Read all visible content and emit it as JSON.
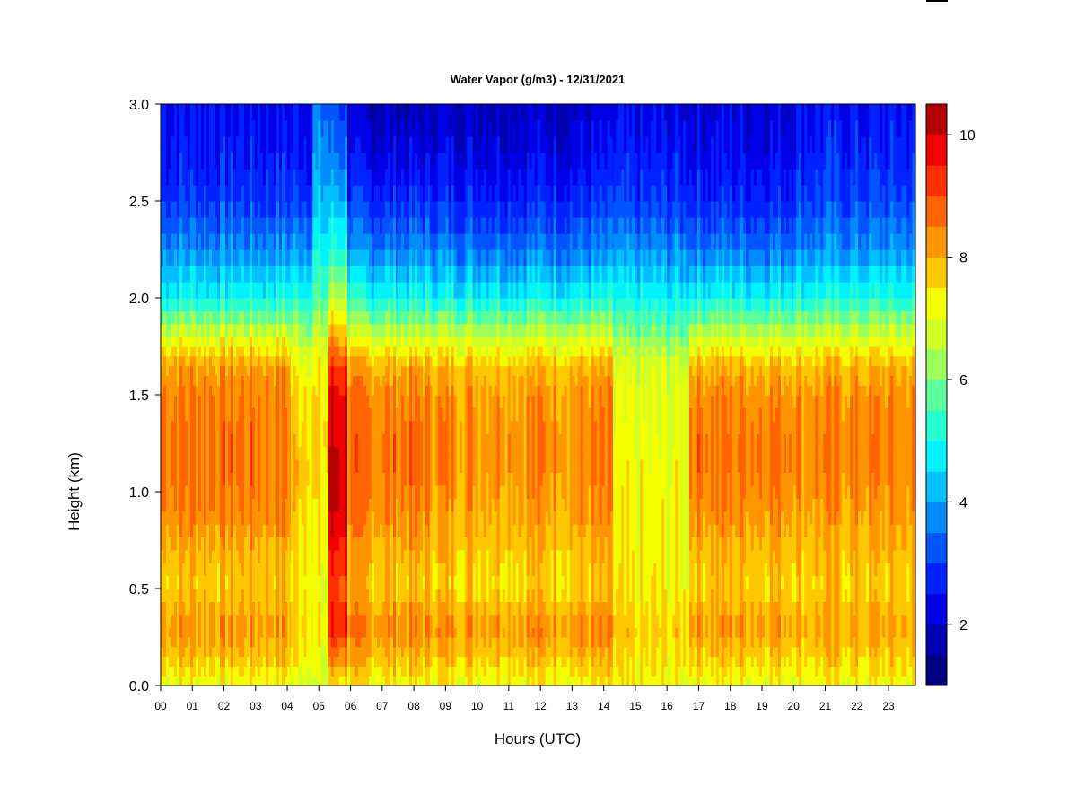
{
  "chart_data": {
    "type": "heatmap",
    "title": "Water Vapor (g/m3) - 12/31/2021",
    "xlabel": "Hours (UTC)",
    "ylabel": "Height (km)",
    "x_ticks": [
      "00",
      "01",
      "02",
      "03",
      "04",
      "05",
      "06",
      "07",
      "08",
      "09",
      "10",
      "11",
      "12",
      "13",
      "14",
      "15",
      "16",
      "17",
      "18",
      "19",
      "20",
      "21",
      "22",
      "23"
    ],
    "y_ticks": [
      "0.0",
      "0.5",
      "1.0",
      "1.5",
      "2.0",
      "2.5",
      "3.0"
    ],
    "xlim": [
      0,
      23.85
    ],
    "ylim": [
      0,
      3.0
    ],
    "colorbar": {
      "range": [
        1.0,
        10.5
      ],
      "ticks": [
        "2",
        "4",
        "6",
        "8",
        "10"
      ],
      "levels": [
        1.0,
        1.5,
        2.0,
        2.5,
        3.0,
        3.5,
        4.0,
        4.5,
        5.0,
        5.5,
        6.0,
        6.5,
        7.0,
        7.5,
        8.0,
        8.5,
        9.0,
        9.5,
        10.0,
        10.5
      ],
      "colors": [
        "#00007f",
        "#0000b3",
        "#0000e6",
        "#0022ff",
        "#0055ff",
        "#008cff",
        "#00c0ff",
        "#00f3ff",
        "#27ffd0",
        "#5bff9c",
        "#9cff5b",
        "#d0ff27",
        "#f3ff00",
        "#ffc800",
        "#ff9600",
        "#ff6400",
        "#ff3000",
        "#f30000",
        "#b30000",
        "#7f0000"
      ]
    },
    "heights_km": [
      0.0,
      0.15,
      0.3,
      0.5,
      0.7,
      0.9,
      1.1,
      1.3,
      1.5,
      1.65,
      1.8,
      2.0,
      2.25,
      2.5,
      2.75,
      3.0
    ],
    "profiles_g_m3": [
      {
        "hours": [
          0.0,
          4.1
        ],
        "values": [
          7.2,
          7.9,
          8.3,
          7.8,
          8.0,
          8.5,
          8.6,
          8.6,
          8.5,
          8.2,
          7.0,
          5.0,
          3.8,
          3.0,
          2.6,
          2.5
        ]
      },
      {
        "hours": [
          4.1,
          4.8
        ],
        "values": [
          7.0,
          7.5,
          7.8,
          7.5,
          7.6,
          7.8,
          7.9,
          7.8,
          7.6,
          7.3,
          6.6,
          5.2,
          4.0,
          3.1,
          2.6,
          2.4
        ]
      },
      {
        "hours": [
          4.8,
          5.3
        ],
        "values": [
          6.8,
          7.0,
          7.2,
          7.0,
          7.2,
          7.3,
          7.5,
          7.6,
          7.4,
          7.2,
          6.6,
          5.6,
          4.8,
          4.2,
          3.8,
          3.4
        ]
      },
      {
        "hours": [
          5.3,
          5.9
        ],
        "values": [
          7.5,
          8.5,
          9.6,
          9.0,
          9.6,
          10.1,
          10.2,
          10.0,
          9.8,
          9.2,
          8.0,
          6.5,
          5.2,
          4.3,
          3.5,
          3.0
        ]
      },
      {
        "hours": [
          5.9,
          8.5
        ],
        "values": [
          7.3,
          7.9,
          8.4,
          7.8,
          8.0,
          8.4,
          8.6,
          8.6,
          8.4,
          8.0,
          6.8,
          5.0,
          3.7,
          2.8,
          2.2,
          1.8
        ]
      },
      {
        "hours": [
          8.5,
          14.3
        ],
        "values": [
          7.3,
          7.9,
          8.4,
          7.7,
          7.9,
          8.2,
          8.4,
          8.4,
          8.3,
          7.9,
          6.8,
          5.0,
          3.6,
          2.8,
          2.3,
          2.0
        ]
      },
      {
        "hours": [
          14.3,
          16.7
        ],
        "values": [
          7.2,
          7.4,
          7.6,
          7.3,
          7.2,
          7.2,
          7.1,
          7.0,
          6.9,
          6.8,
          6.0,
          4.8,
          3.7,
          2.9,
          2.5,
          2.2
        ]
      },
      {
        "hours": [
          16.7,
          20.0
        ],
        "values": [
          7.2,
          7.8,
          8.3,
          7.8,
          8.0,
          8.4,
          8.6,
          8.6,
          8.4,
          8.0,
          6.8,
          5.0,
          3.6,
          2.8,
          2.4,
          2.2
        ]
      },
      {
        "hours": [
          20.0,
          23.85
        ],
        "values": [
          7.2,
          7.7,
          8.1,
          7.7,
          7.9,
          8.2,
          8.4,
          8.4,
          8.3,
          7.9,
          6.9,
          5.1,
          3.8,
          3.1,
          2.7,
          2.5
        ]
      }
    ]
  }
}
